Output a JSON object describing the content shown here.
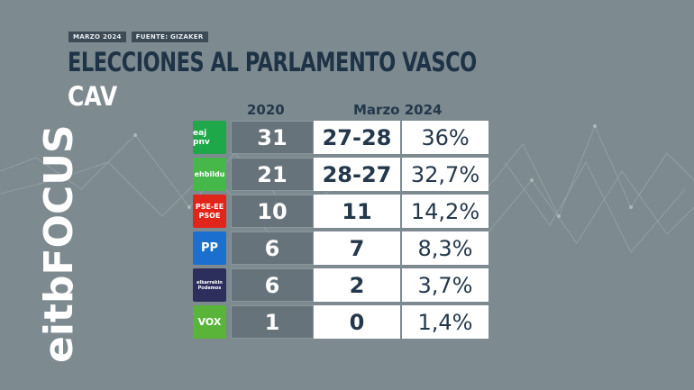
{
  "meta": {
    "date": "MARZO 2024",
    "source": "FUENTE: GIZAKER"
  },
  "title": "ELECCIONES AL PARLAMENTO VASCO",
  "subtitle": "CAV",
  "brand": {
    "name": "eitbFOCUS"
  },
  "columns": {
    "prev": "2020",
    "current": "Marzo 2024"
  },
  "parties": [
    {
      "logo_text": "eaj pnv",
      "logo_color": "#1fa84a",
      "seats_2020": "31",
      "seats_2024": "27-28",
      "pct": "36%"
    },
    {
      "logo_text": "ehbildu",
      "logo_color": "#46b84a",
      "seats_2020": "21",
      "seats_2024": "28-27",
      "pct": "32,7%"
    },
    {
      "logo_text": "PSE-EE PSOE",
      "logo_color": "#e1251b",
      "seats_2020": "10",
      "seats_2024": "11",
      "pct": "14,2%"
    },
    {
      "logo_text": "PP",
      "logo_color": "#1a6fcf",
      "seats_2020": "6",
      "seats_2024": "7",
      "pct": "8,3%"
    },
    {
      "logo_text": "elkarrekin Podemos",
      "logo_color": "#2c2f5c",
      "seats_2020": "6",
      "seats_2024": "2",
      "pct": "3,7%"
    },
    {
      "logo_text": "VOX",
      "logo_color": "#5bb43a",
      "seats_2020": "1",
      "seats_2024": "0",
      "pct": "1,4%"
    }
  ]
}
